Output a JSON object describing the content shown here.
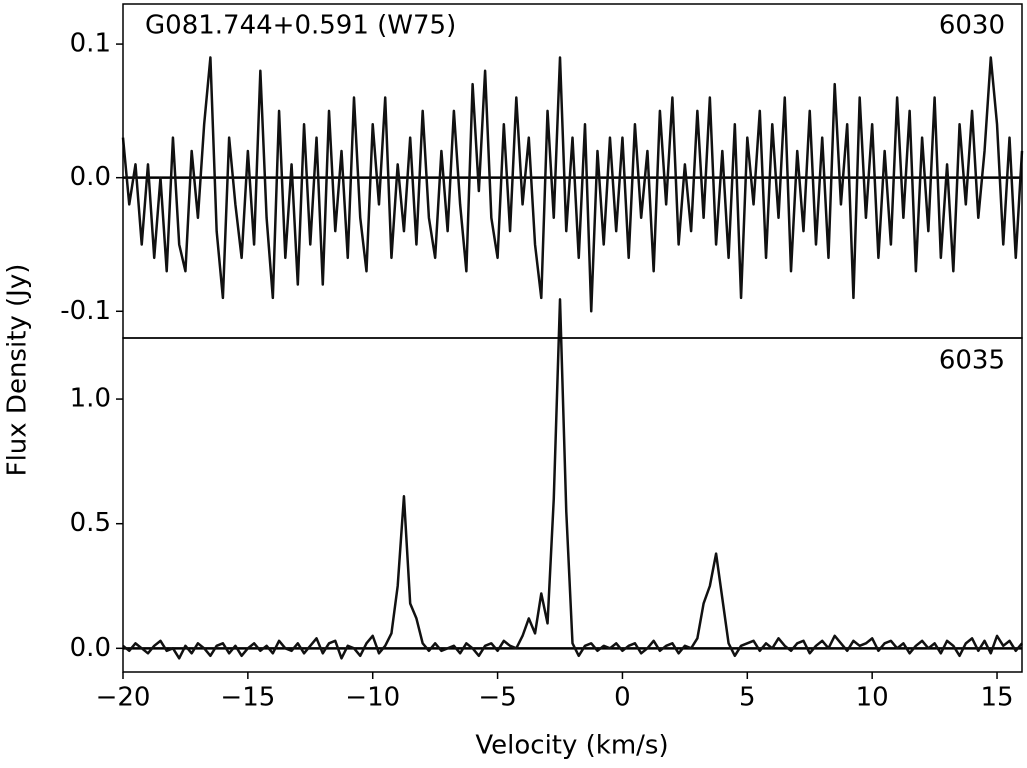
{
  "chart_data": [
    {
      "type": "line",
      "title": "G081.744+0.591 (W75)",
      "label": "6030",
      "ylabel": "Flux Density (Jy)",
      "color": "#111111",
      "zero_line": true,
      "xlim": [
        -20,
        16
      ],
      "ylim": [
        -0.12,
        0.13
      ],
      "yticks": [
        {
          "value": -0.1,
          "label": "-0.1"
        },
        {
          "value": 0,
          "label": "0.0"
        },
        0.1
      ],
      "x": [
        -20,
        -19.75,
        -19.5,
        -19.25,
        -19,
        -18.75,
        -18.5,
        -18.25,
        -18,
        -17.75,
        -17.5,
        -17.25,
        -17,
        -16.75,
        -16.5,
        -16.25,
        -16,
        -15.75,
        -15.5,
        -15.25,
        -15,
        -14.75,
        -14.5,
        -14.25,
        -14,
        -13.75,
        -13.5,
        -13.25,
        -13,
        -12.75,
        -12.5,
        -12.25,
        -12,
        -11.75,
        -11.5,
        -11.25,
        -11,
        -10.75,
        -10.5,
        -10.25,
        -10,
        -9.75,
        -9.5,
        -9.25,
        -9,
        -8.75,
        -8.5,
        -8.25,
        -8,
        -7.75,
        -7.5,
        -7.25,
        -7,
        -6.75,
        -6.5,
        -6.25,
        -6,
        -5.75,
        -5.5,
        -5.25,
        -5,
        -4.75,
        -4.5,
        -4.25,
        -4,
        -3.75,
        -3.5,
        -3.25,
        -3,
        -2.75,
        -2.5,
        -2.25,
        -2,
        -1.75,
        -1.5,
        -1.25,
        -1,
        -0.75,
        -0.5,
        -0.25,
        0,
        0.25,
        0.5,
        0.75,
        1,
        1.25,
        1.5,
        1.75,
        2,
        2.25,
        2.5,
        2.75,
        3,
        3.25,
        3.5,
        3.75,
        4,
        4.25,
        4.5,
        4.75,
        5,
        5.25,
        5.5,
        5.75,
        6,
        6.25,
        6.5,
        6.75,
        7,
        7.25,
        7.5,
        7.75,
        8,
        8.25,
        8.5,
        8.75,
        9,
        9.25,
        9.5,
        9.75,
        10,
        10.25,
        10.5,
        10.75,
        11,
        11.25,
        11.5,
        11.75,
        12,
        12.25,
        12.5,
        12.75,
        13,
        13.25,
        13.5,
        13.75,
        14,
        14.25,
        14.5,
        14.75,
        15,
        15.25,
        15.5,
        15.75,
        16
      ],
      "values": [
        0.03,
        -0.02,
        0.01,
        -0.05,
        0.01,
        -0.06,
        0.0,
        -0.07,
        0.03,
        -0.05,
        -0.07,
        0.02,
        -0.03,
        0.04,
        0.09,
        -0.04,
        -0.09,
        0.03,
        -0.02,
        -0.06,
        0.02,
        -0.05,
        0.08,
        -0.03,
        -0.09,
        0.05,
        -0.06,
        0.01,
        -0.08,
        0.04,
        -0.05,
        0.03,
        -0.08,
        0.05,
        -0.04,
        0.02,
        -0.06,
        0.06,
        -0.03,
        -0.07,
        0.04,
        -0.02,
        0.06,
        -0.06,
        0.01,
        -0.04,
        0.03,
        -0.05,
        0.05,
        -0.03,
        -0.06,
        0.02,
        -0.04,
        0.05,
        -0.02,
        -0.07,
        0.07,
        -0.01,
        0.08,
        -0.03,
        -0.06,
        0.04,
        -0.04,
        0.06,
        -0.02,
        0.03,
        -0.05,
        -0.09,
        0.05,
        -0.03,
        0.09,
        -0.04,
        0.03,
        -0.06,
        0.04,
        -0.1,
        0.02,
        -0.05,
        0.03,
        -0.04,
        0.03,
        -0.06,
        0.04,
        -0.03,
        0.02,
        -0.07,
        0.05,
        -0.02,
        0.06,
        -0.05,
        0.01,
        -0.04,
        0.05,
        -0.03,
        0.06,
        -0.05,
        0.02,
        -0.06,
        0.04,
        -0.09,
        0.03,
        -0.02,
        0.05,
        -0.06,
        0.04,
        -0.03,
        0.06,
        -0.07,
        0.02,
        -0.04,
        0.05,
        -0.05,
        0.03,
        -0.06,
        0.07,
        -0.02,
        0.04,
        -0.09,
        0.06,
        -0.03,
        0.04,
        -0.06,
        0.02,
        -0.05,
        0.06,
        -0.03,
        0.05,
        -0.07,
        0.03,
        -0.04,
        0.06,
        -0.06,
        0.01,
        -0.07,
        0.04,
        -0.02,
        0.05,
        -0.03,
        0.02,
        0.09,
        0.04,
        -0.05,
        0.03,
        -0.06,
        0.02
      ]
    },
    {
      "type": "line",
      "label": "6035",
      "xlabel": "Velocity (km/s)",
      "color": "#111111",
      "zero_line": true,
      "xlim": [
        -20,
        16
      ],
      "ylim": [
        -0.095,
        1.245
      ],
      "xticks": [
        {
          "value": -20,
          "label": "−20"
        },
        {
          "value": -15,
          "label": "−15"
        },
        {
          "value": -10,
          "label": "−10"
        },
        {
          "value": -5,
          "label": "−5"
        },
        0,
        5,
        10,
        15
      ],
      "yticks": [
        {
          "value": 0,
          "label": "0.0"
        },
        0.5,
        {
          "value": 1,
          "label": "1.0"
        }
      ],
      "x": [
        -20,
        -19.75,
        -19.5,
        -19.25,
        -19,
        -18.75,
        -18.5,
        -18.25,
        -18,
        -17.75,
        -17.5,
        -17.25,
        -17,
        -16.75,
        -16.5,
        -16.25,
        -16,
        -15.75,
        -15.5,
        -15.25,
        -15,
        -14.75,
        -14.5,
        -14.25,
        -14,
        -13.75,
        -13.5,
        -13.25,
        -13,
        -12.75,
        -12.5,
        -12.25,
        -12,
        -11.75,
        -11.5,
        -11.25,
        -11,
        -10.75,
        -10.5,
        -10.25,
        -10,
        -9.75,
        -9.5,
        -9.25,
        -9,
        -8.75,
        -8.5,
        -8.25,
        -8,
        -7.75,
        -7.5,
        -7.25,
        -7,
        -6.75,
        -6.5,
        -6.25,
        -6,
        -5.75,
        -5.5,
        -5.25,
        -5,
        -4.75,
        -4.5,
        -4.25,
        -4,
        -3.75,
        -3.5,
        -3.25,
        -3,
        -2.75,
        -2.5,
        -2.25,
        -2,
        -1.75,
        -1.5,
        -1.25,
        -1,
        -0.75,
        -0.5,
        -0.25,
        0,
        0.25,
        0.5,
        0.75,
        1,
        1.25,
        1.5,
        1.75,
        2,
        2.25,
        2.5,
        2.75,
        3,
        3.25,
        3.5,
        3.75,
        4,
        4.25,
        4.5,
        4.75,
        5,
        5.25,
        5.5,
        5.75,
        6,
        6.25,
        6.5,
        6.75,
        7,
        7.25,
        7.5,
        7.75,
        8,
        8.25,
        8.5,
        8.75,
        9,
        9.25,
        9.5,
        9.75,
        10,
        10.25,
        10.5,
        10.75,
        11,
        11.25,
        11.5,
        11.75,
        12,
        12.25,
        12.5,
        12.75,
        13,
        13.25,
        13.5,
        13.75,
        14,
        14.25,
        14.5,
        14.75,
        15,
        15.25,
        15.5,
        15.75,
        16
      ],
      "values": [
        0.01,
        -0.01,
        0.02,
        0.0,
        -0.02,
        0.01,
        0.03,
        -0.01,
        0.0,
        -0.04,
        0.01,
        -0.02,
        0.02,
        0.0,
        -0.03,
        0.01,
        0.02,
        -0.02,
        0.01,
        -0.03,
        0.0,
        0.02,
        -0.01,
        0.01,
        -0.02,
        0.03,
        0.0,
        -0.01,
        0.02,
        -0.02,
        0.01,
        0.04,
        -0.02,
        0.02,
        0.03,
        -0.04,
        0.01,
        0.0,
        -0.03,
        0.02,
        0.05,
        -0.02,
        0.01,
        0.06,
        0.25,
        0.61,
        0.18,
        0.12,
        0.02,
        -0.01,
        0.02,
        -0.01,
        0.0,
        0.01,
        -0.02,
        0.02,
        0.0,
        -0.03,
        0.01,
        0.02,
        -0.01,
        0.03,
        0.01,
        0.0,
        0.05,
        0.12,
        0.06,
        0.22,
        0.1,
        0.6,
        1.4,
        0.55,
        0.02,
        -0.03,
        0.01,
        0.02,
        -0.01,
        0.01,
        0.0,
        0.02,
        -0.01,
        0.01,
        0.02,
        -0.02,
        0.0,
        0.03,
        -0.01,
        0.01,
        0.02,
        -0.02,
        0.01,
        0.0,
        0.04,
        0.18,
        0.25,
        0.38,
        0.2,
        0.02,
        -0.03,
        0.01,
        0.02,
        0.03,
        -0.01,
        0.02,
        0.0,
        0.04,
        0.01,
        -0.01,
        0.02,
        0.03,
        -0.02,
        0.01,
        0.03,
        0.0,
        0.05,
        0.02,
        -0.01,
        0.03,
        0.01,
        0.02,
        0.04,
        -0.01,
        0.02,
        0.03,
        0.0,
        0.02,
        -0.02,
        0.01,
        0.03,
        0.0,
        0.02,
        -0.02,
        0.03,
        0.01,
        -0.03,
        0.02,
        0.04,
        -0.01,
        0.03,
        -0.02,
        0.05,
        0.01,
        0.03,
        -0.01,
        0.02
      ]
    }
  ]
}
